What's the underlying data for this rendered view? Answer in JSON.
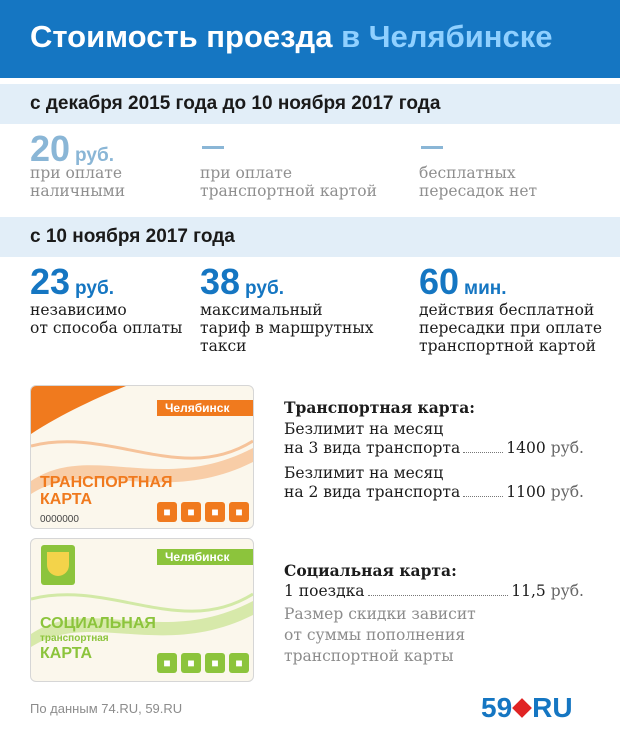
{
  "header": {
    "title_main": "Стоимость проезда",
    "title_accent": "в Челябинске"
  },
  "period1": {
    "label": "с декабря 2015 года до 10 ноября 2017 года",
    "items": [
      {
        "value": "20",
        "unit": "руб.",
        "desc": "при оплате\nналичными"
      },
      {
        "value": "—",
        "unit": "",
        "desc": "при оплате\nтранспортной картой"
      },
      {
        "value": "—",
        "unit": "",
        "desc": "бесплатных\nпересадок нет"
      }
    ]
  },
  "period2": {
    "label": "с 10 ноября 2017 года",
    "items": [
      {
        "value": "23",
        "unit": "руб.",
        "desc": "независимо\nот способа оплаты"
      },
      {
        "value": "38",
        "unit": "руб.",
        "desc": "максимальный\nтариф в маршрутных\nтакси"
      },
      {
        "value": "60",
        "unit": "мин.",
        "desc": "действия бесплатной\nпересадки при оплате\nтранспортной картой"
      }
    ]
  },
  "transport_card": {
    "city": "Челябинск",
    "title": "ТРАНСПОРТНАЯ\nКАРТА",
    "number": "0000000",
    "heading": "Транспортная карта:",
    "tariffs": [
      {
        "line1": "Безлимит на месяц",
        "line2": "на 3 вида транспорта",
        "price": "1400",
        "currency": "руб."
      },
      {
        "line1": "Безлимит на месяц",
        "line2": "на 2 вида транспорта",
        "price": "1100",
        "currency": "руб."
      }
    ]
  },
  "social_card": {
    "city": "Челябинск",
    "title": "СОЦИАЛЬНАЯ",
    "subtitle": "транспортная",
    "title2": "КАРТА",
    "heading": "Социальная карта:",
    "trip_label": "1 поездка",
    "trip_price": "11,5",
    "trip_currency": "руб.",
    "note": "Размер скидки зависит\nот суммы пополнения\nтранспортной карты"
  },
  "footer": {
    "source": "По данным 74.RU, 59.RU"
  },
  "logo": {
    "left": "59",
    "right": "RU"
  },
  "icons": [
    "bus-icon",
    "trolleybus-icon",
    "tram-icon",
    "minibus-icon"
  ],
  "colors": {
    "brand_blue": "#1576c2",
    "orange": "#f07a1e",
    "green": "#8cc43c"
  }
}
